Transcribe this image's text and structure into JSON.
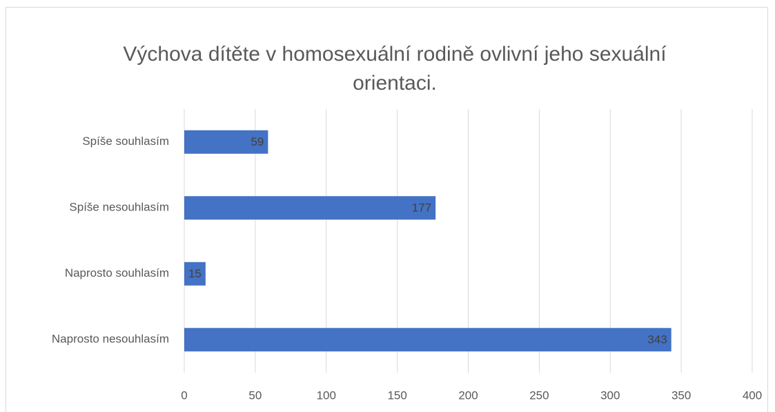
{
  "chart_data": {
    "type": "bar",
    "orientation": "horizontal",
    "title": "Výchova dítěte v homosexuální rodině ovlivní jeho sexuální orientaci.",
    "categories": [
      "Spíše souhlasím",
      "Spíše nesouhlasím",
      "Naprosto souhlasím",
      "Naprosto nesouhlasím"
    ],
    "values": [
      59,
      177,
      15,
      343
    ],
    "color": "#4472c4",
    "xlim": [
      0,
      400
    ],
    "xticks": [
      0,
      50,
      100,
      150,
      200,
      250,
      300,
      350,
      400
    ],
    "grid": true
  }
}
